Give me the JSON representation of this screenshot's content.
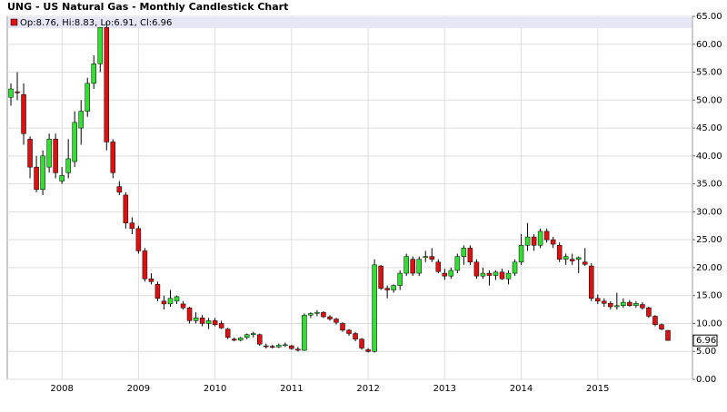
{
  "chart_data": {
    "type": "candlestick",
    "title": "UNG - US Natural Gas - Monthly Candlestick Chart",
    "legend_text": "Op:8.76, Hi:8.83, Lo:6.91, Cl:6.96",
    "categories": [
      null,
      null,
      null,
      null,
      null,
      null,
      null,
      null,
      "2008",
      null,
      null,
      null,
      null,
      null,
      null,
      null,
      null,
      null,
      null,
      null,
      "2009",
      null,
      null,
      null,
      null,
      null,
      null,
      null,
      null,
      null,
      null,
      null,
      "2010",
      null,
      null,
      null,
      null,
      null,
      null,
      null,
      null,
      null,
      null,
      null,
      "2011",
      null,
      null,
      null,
      null,
      null,
      null,
      null,
      null,
      null,
      null,
      null,
      "2012",
      null,
      null,
      null,
      null,
      null,
      null,
      null,
      null,
      null,
      null,
      null,
      "2013",
      null,
      null,
      null,
      null,
      null,
      null,
      null,
      null,
      null,
      null,
      null,
      "2014",
      null,
      null,
      null,
      null,
      null,
      null,
      null,
      null,
      null,
      null,
      null,
      "2015",
      null,
      null,
      null,
      null,
      null,
      null,
      null,
      null,
      null,
      null,
      null
    ],
    "open": [
      50.5,
      51.5,
      51,
      43,
      38,
      34,
      38,
      43,
      35.5,
      37,
      39,
      45,
      48,
      53,
      56.5,
      63,
      42.5,
      34.5,
      33,
      28,
      27,
      23,
      18,
      17,
      14,
      13.5,
      14,
      13.5,
      12.8,
      10.5,
      11,
      10,
      10.5,
      10,
      9,
      7.2,
      7,
      7.5,
      8,
      8,
      6,
      5.9,
      5.8,
      6.1,
      6,
      5.4,
      5.2,
      11.5,
      11.8,
      12,
      11.2,
      10.8,
      10,
      8.8,
      8.2,
      7.2,
      5.3,
      5,
      20.3,
      16.3,
      16,
      16.8,
      19,
      21.5,
      19,
      21.8,
      22,
      21,
      19,
      18.5,
      19.5,
      22,
      23.5,
      21,
      18.5,
      19,
      18.6,
      19.2,
      18,
      19,
      21,
      24,
      25.5,
      24,
      26.5,
      25,
      24,
      21.5,
      21.5,
      21.5,
      21,
      20.3,
      14.5,
      14,
      13.6,
      13,
      13.2,
      13.8,
      13.2,
      13.4,
      12.8,
      11.3,
      9.8,
      8.76
    ],
    "high": [
      53,
      55,
      53,
      43.5,
      40,
      41,
      44,
      44,
      38,
      43,
      48,
      50,
      54,
      58,
      63,
      64,
      43,
      35.5,
      33.5,
      29,
      27.5,
      23.5,
      19,
      17.5,
      15,
      16,
      15,
      14,
      13,
      12,
      11.5,
      11,
      11,
      10.5,
      9.2,
      7.5,
      7.6,
      8.2,
      8.5,
      8.2,
      6.4,
      6.2,
      6.4,
      6.6,
      6.2,
      5.8,
      11.8,
      12,
      12.4,
      12.2,
      11.5,
      11,
      10.2,
      9,
      8.5,
      7.4,
      5.6,
      21.5,
      20.5,
      16.8,
      17,
      19.5,
      22.5,
      22,
      22,
      23,
      23.5,
      21.5,
      19.8,
      20,
      22.5,
      24,
      24,
      21.5,
      20,
      19.5,
      19.5,
      19.8,
      19.5,
      21.5,
      26,
      28,
      26,
      27,
      27,
      25.5,
      24.5,
      22.5,
      22.5,
      22,
      23.5,
      20.8,
      15.2,
      14.5,
      14,
      15.5,
      14.5,
      14.2,
      14,
      13.8,
      13,
      11.5,
      10,
      8.83
    ],
    "low": [
      49,
      50,
      42,
      36,
      33.5,
      33,
      37,
      36,
      35,
      36,
      38,
      42,
      47,
      52,
      55,
      41,
      36,
      33,
      27,
      26,
      22.5,
      17.5,
      17,
      14,
      12.5,
      13,
      13.5,
      12.5,
      10,
      10,
      9.5,
      9,
      9.5,
      9,
      7.2,
      6.8,
      6.8,
      7.2,
      7.5,
      6,
      5.5,
      5.5,
      5.6,
      5.8,
      5.3,
      5,
      5.1,
      11,
      11.3,
      11,
      10.5,
      9.8,
      8.5,
      7.8,
      6.8,
      5.3,
      4.8,
      4.8,
      16,
      14.5,
      15.5,
      16,
      18.5,
      18.5,
      18.5,
      21,
      21,
      19,
      17.8,
      18,
      19,
      20.5,
      20.5,
      18,
      18,
      16.8,
      17.8,
      17.8,
      17,
      18.5,
      20.5,
      23,
      23,
      23.5,
      24.5,
      23.5,
      21,
      20.5,
      20.5,
      19,
      20.3,
      14,
      13.5,
      13,
      12.5,
      12.5,
      12.8,
      13,
      12.8,
      12.5,
      11,
      9.5,
      8.8,
      6.91
    ],
    "close": [
      52,
      51.3,
      44,
      38,
      34,
      40,
      43,
      37,
      36.5,
      39.5,
      46,
      48,
      53,
      56.5,
      63,
      42.5,
      37,
      33.5,
      28,
      27,
      23,
      18,
      17.5,
      14.5,
      13.5,
      14.5,
      14.8,
      12.8,
      10.5,
      11,
      10,
      10.5,
      9.8,
      9.2,
      7.5,
      7,
      7.4,
      8,
      8.2,
      6.3,
      5.9,
      5.8,
      6.1,
      6.2,
      5.5,
      5.2,
      11.5,
      11.8,
      12,
      11.2,
      10.8,
      10.2,
      8.8,
      8.2,
      7.2,
      5.6,
      5,
      20.5,
      16.3,
      16,
      16.8,
      19,
      22,
      19,
      21.5,
      22,
      21.5,
      19.3,
      18.5,
      19.5,
      22,
      23.5,
      21,
      18.5,
      19,
      18.6,
      19.2,
      18,
      19,
      21,
      24,
      25.5,
      24,
      26.5,
      25,
      24.2,
      21.5,
      22,
      21.2,
      21.8,
      20.6,
      14.5,
      14,
      13.6,
      13,
      13.2,
      13.8,
      13.2,
      13.6,
      12.8,
      11.3,
      9.8,
      9,
      6.96
    ],
    "up_color": "#33dd33",
    "down_color": "#dd1111",
    "ylim": [
      0,
      65
    ],
    "yticks": [
      {
        "value": 0,
        "label": "0.00"
      },
      {
        "value": 5,
        "label": "5.00"
      },
      {
        "value": 10,
        "label": "10.00"
      },
      {
        "value": 15,
        "label": "15.00"
      },
      {
        "value": 20,
        "label": "20.00"
      },
      {
        "value": 25,
        "label": "25.00"
      },
      {
        "value": 30,
        "label": "30.00"
      },
      {
        "value": 35,
        "label": "35.00"
      },
      {
        "value": 40,
        "label": "40.00"
      },
      {
        "value": 45,
        "label": "45.00"
      },
      {
        "value": 50,
        "label": "50.00"
      },
      {
        "value": 55,
        "label": "55.00"
      },
      {
        "value": 60,
        "label": "60.00"
      },
      {
        "value": 65,
        "label": "65.00"
      }
    ],
    "grid": true
  }
}
